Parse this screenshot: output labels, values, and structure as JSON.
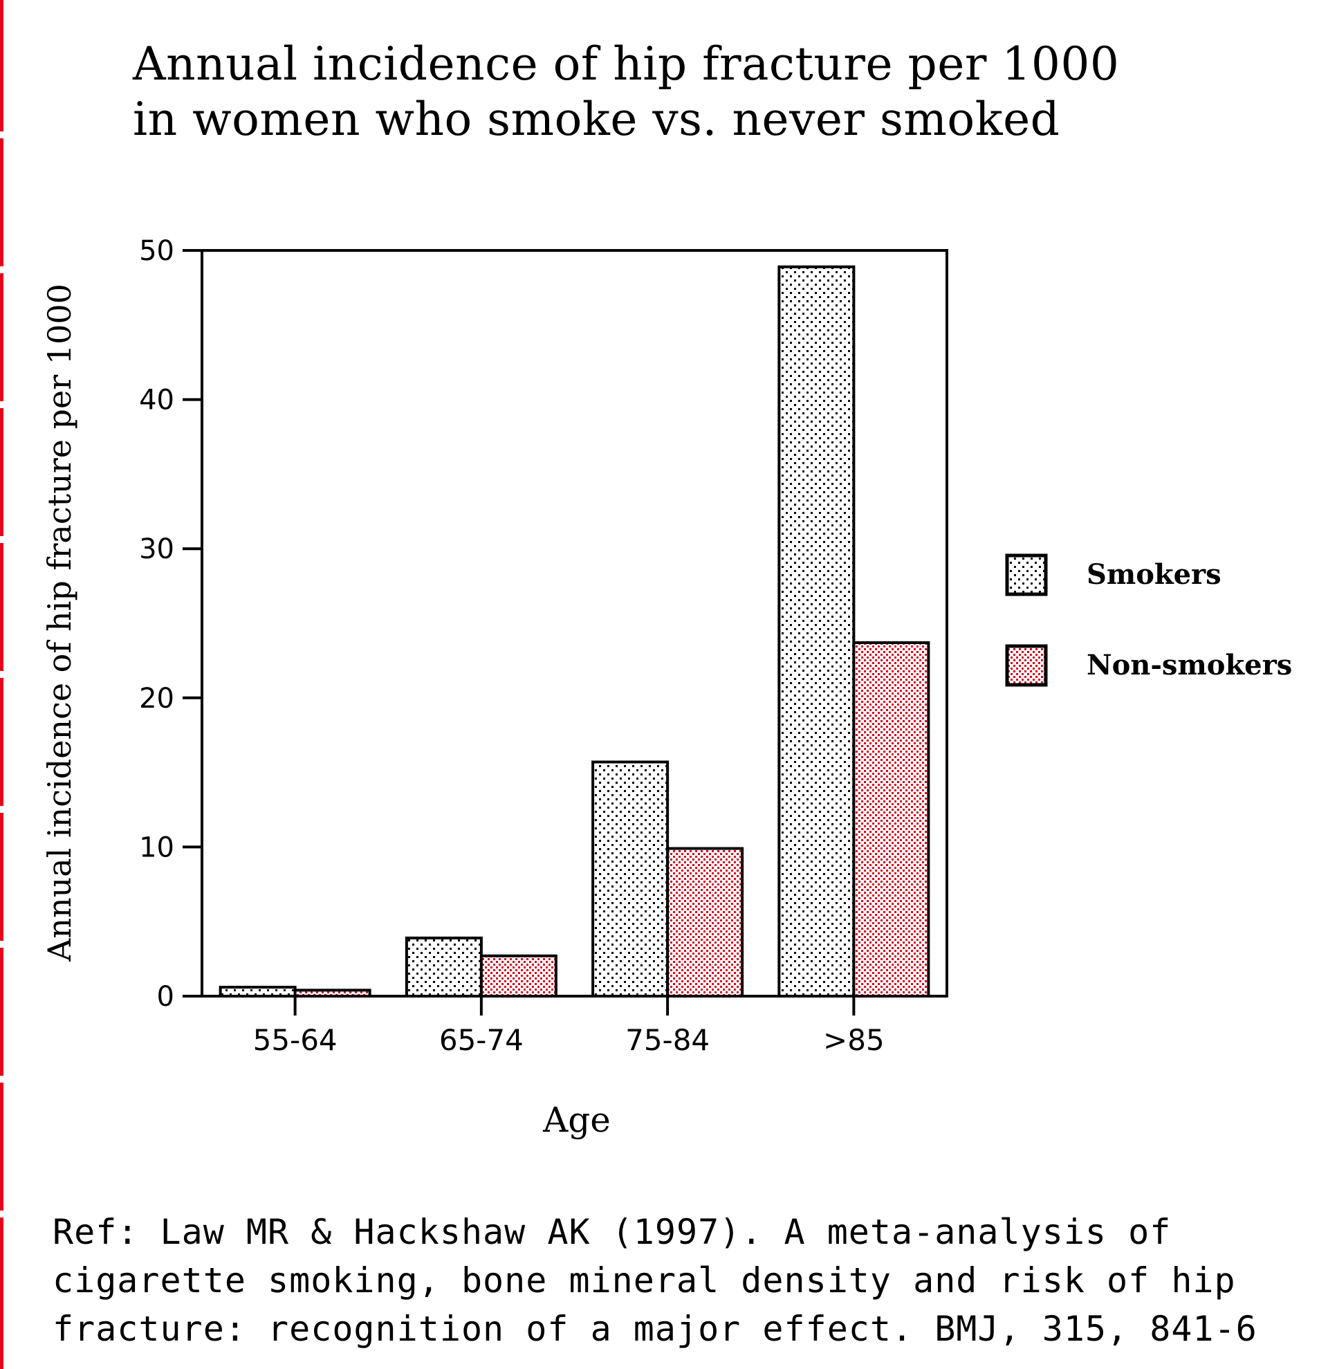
{
  "chart_data": {
    "type": "bar",
    "title": "Annual incidence of hip fracture per 1000 in women who smoke vs. never smoked",
    "title_lines": [
      "Annual incidence of hip fracture per 1000",
      "in women who smoke vs. never smoked"
    ],
    "xlabel": "Age",
    "ylabel": "Annual incidence of hip fracture per 1000",
    "categories": [
      "55-64",
      "65-74",
      "75-84",
      ">85"
    ],
    "series": [
      {
        "name": "Smokers",
        "values": [
          0.6,
          3.9,
          15.7,
          48.9
        ],
        "color": "#000000",
        "background": "#ffffff"
      },
      {
        "name": "Non-smokers",
        "values": [
          0.4,
          2.7,
          9.9,
          23.7
        ],
        "color": "#d8001c",
        "background": "#ffffff"
      }
    ],
    "ylim": [
      0,
      50
    ],
    "yticks": [
      "0",
      "10",
      "20",
      "30",
      "40",
      "50"
    ],
    "grid": false,
    "legend_position": "right"
  },
  "reference": {
    "lines": [
      "Ref: Law MR & Hackshaw AK (1997). A meta-analysis of",
      "cigarette smoking, bone mineral density and risk of hip",
      "fracture: recognition of a major effect. BMJ, 315, 841-6"
    ]
  },
  "colors": {
    "accent_red": "#e8001a",
    "ink": "#000000"
  }
}
